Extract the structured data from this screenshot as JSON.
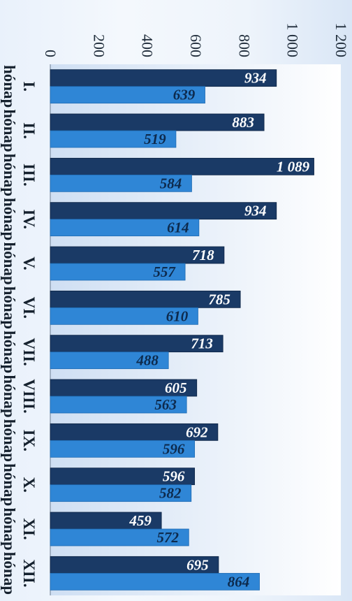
{
  "chart_data": {
    "type": "bar",
    "orientation": "rotated-90",
    "title": "",
    "xlabel": "",
    "ylabel": "",
    "categories": [
      [
        "I.",
        "hónap"
      ],
      [
        "II.",
        "hónap"
      ],
      [
        "III.",
        "hónap"
      ],
      [
        "IV.",
        "hónap"
      ],
      [
        "V.",
        "hónap"
      ],
      [
        "VI.",
        "hónap"
      ],
      [
        "VII.",
        "hónap"
      ],
      [
        "VIII.",
        "hónap"
      ],
      [
        "IX.",
        "hónap"
      ],
      [
        "X.",
        "hónap"
      ],
      [
        "XI.",
        "hónap"
      ],
      [
        "XII.",
        "hónap"
      ]
    ],
    "series": [
      {
        "color": "#1a3a66",
        "values": [
          934,
          883,
          1089,
          934,
          718,
          785,
          713,
          605,
          692,
          596,
          459,
          695
        ],
        "labels": [
          "934",
          "883",
          "1 089",
          "934",
          "718",
          "785",
          "713",
          "605",
          "692",
          "596",
          "459",
          "695"
        ]
      },
      {
        "color": "#2f86d6",
        "values": [
          639,
          519,
          584,
          614,
          557,
          610,
          488,
          563,
          596,
          582,
          572,
          864
        ],
        "labels": [
          "639",
          "519",
          "584",
          "614",
          "557",
          "610",
          "488",
          "563",
          "596",
          "582",
          "572",
          "864"
        ]
      }
    ],
    "ylim": [
      0,
      1200
    ],
    "y_ticks": [
      0,
      200,
      400,
      600,
      800,
      1000,
      1200
    ],
    "y_tick_labels": [
      "0",
      "200",
      "400",
      "600",
      "800",
      "1 000",
      "1 200"
    ],
    "grid": false,
    "legend": "none"
  }
}
